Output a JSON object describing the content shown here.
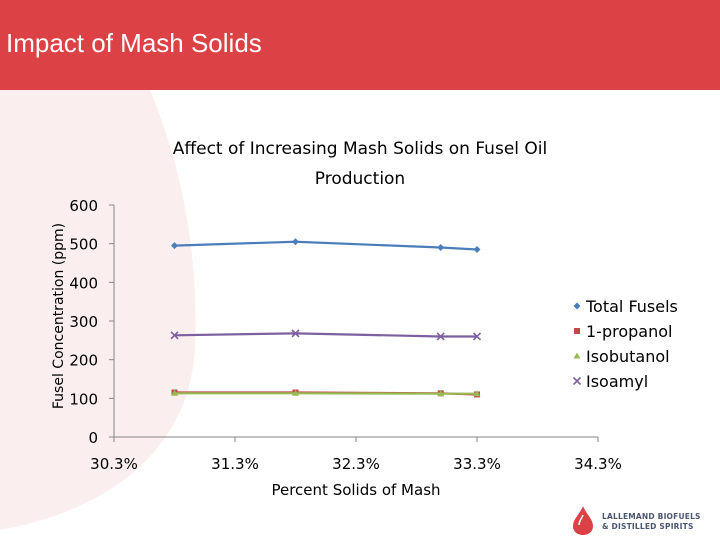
{
  "slide": {
    "title": "Impact of Mash Solids",
    "brand_color": "#dc4145"
  },
  "logo": {
    "line1": "LALLEMAND BIOFUELS",
    "line2": "& DISTILLED SPIRITS"
  },
  "chart_data": {
    "type": "line",
    "title": "Affect of Increasing Mash Solids on Fusel Oil Production",
    "xlabel": "Percent Solids of Mash",
    "ylabel": "Fusel Concentration (ppm)",
    "xlim": [
      30.3,
      34.3
    ],
    "ylim": [
      0,
      600
    ],
    "x_ticks": [
      "30.3%",
      "31.3%",
      "32.3%",
      "33.3%",
      "34.3%"
    ],
    "x_tick_values": [
      30.3,
      31.3,
      32.3,
      33.3,
      34.3
    ],
    "y_ticks": [
      0,
      100,
      200,
      300,
      400,
      500,
      600
    ],
    "grid": false,
    "legend": "right",
    "series": [
      {
        "name": "Total Fusels",
        "color": "#4a7ebb",
        "marker": "diamond",
        "x": [
          30.8,
          31.8,
          33.0,
          33.3
        ],
        "y": [
          495,
          505,
          490,
          485
        ]
      },
      {
        "name": "1-propanol",
        "color": "#be4b48",
        "marker": "square",
        "x": [
          30.8,
          31.8,
          33.0,
          33.3
        ],
        "y": [
          115,
          115,
          113,
          110
        ]
      },
      {
        "name": "Isobutanol",
        "color": "#98b954",
        "marker": "triangle",
        "x": [
          30.8,
          31.8,
          33.0,
          33.3
        ],
        "y": [
          113,
          113,
          112,
          112
        ]
      },
      {
        "name": "Isoamyl",
        "color": "#7d60a0",
        "marker": "x",
        "x": [
          30.8,
          31.8,
          33.0,
          33.3
        ],
        "y": [
          263,
          268,
          260,
          260
        ]
      }
    ]
  }
}
